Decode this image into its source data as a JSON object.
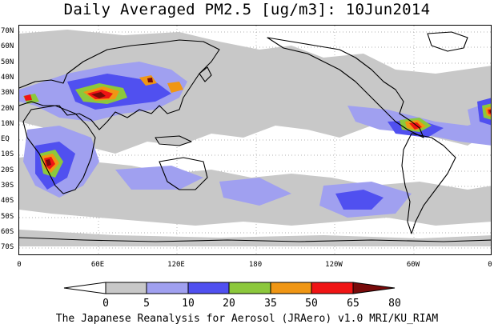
{
  "title": "Daily Averaged PM2.5 [ug/m3]: 10Jun2014",
  "credit": "The Japanese Reanalysis for Aerosol (JRAero) v1.0 MRI/KU_RIAM",
  "lat_labels": [
    "70N",
    "60N",
    "50N",
    "40N",
    "30N",
    "20N",
    "10N",
    "EQ",
    "10S",
    "20S",
    "30S",
    "40S",
    "50S",
    "60S",
    "70S"
  ],
  "lon_labels": [
    "0",
    "60E",
    "120E",
    "180",
    "120W",
    "60W",
    "0"
  ],
  "legend": {
    "ticks": [
      "0",
      "5",
      "10",
      "20",
      "35",
      "50",
      "65",
      "80"
    ],
    "colors": [
      "#ffffff",
      "#c8c8c8",
      "#a0a0f0",
      "#5050f0",
      "#8cc83c",
      "#f09614",
      "#f01414",
      "#780a0a"
    ]
  }
}
